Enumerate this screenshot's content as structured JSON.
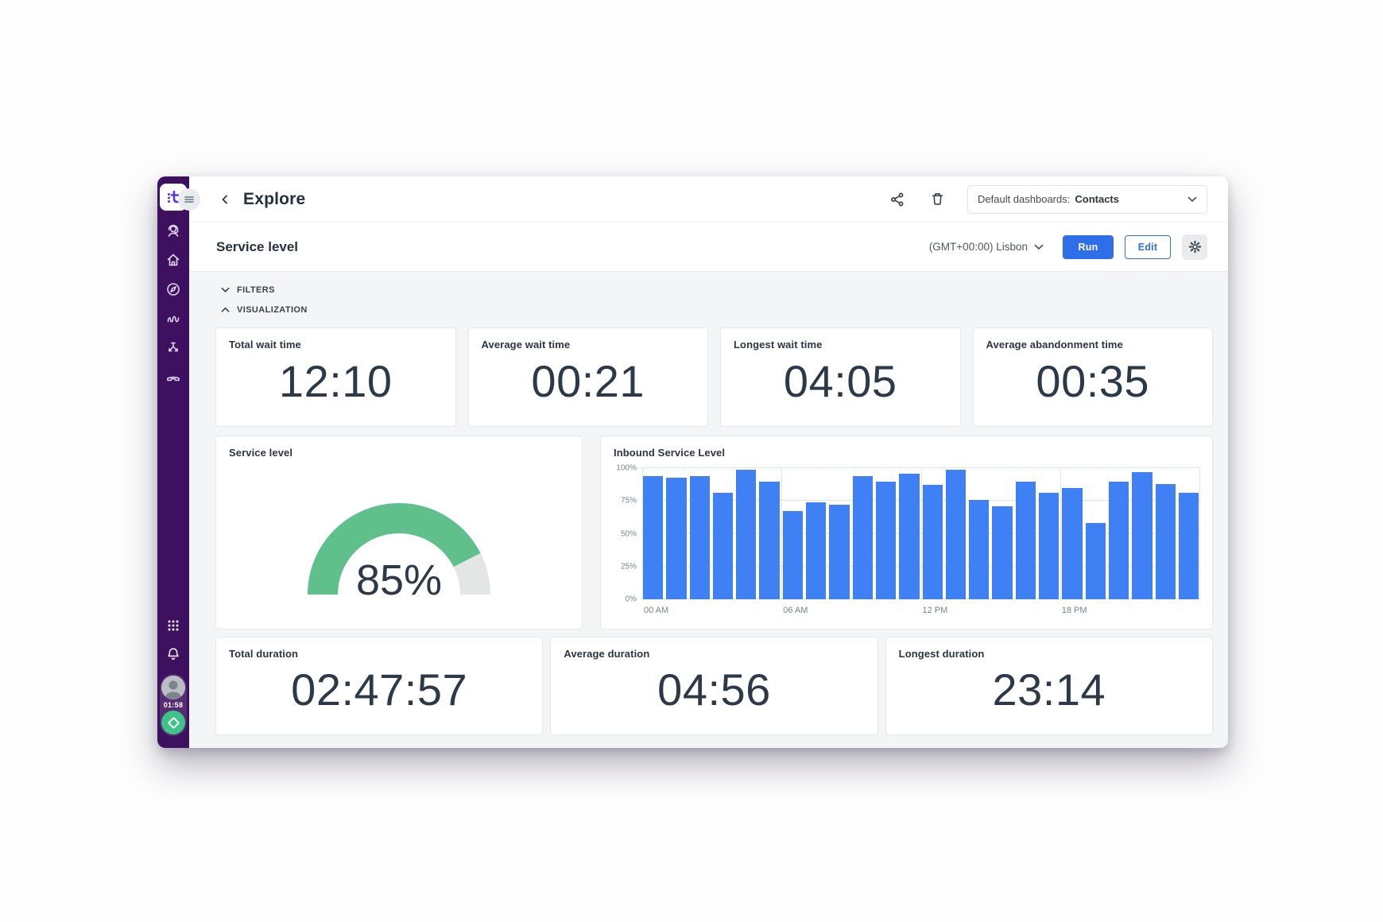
{
  "colors": {
    "sidebar": "#3d1160",
    "accent_blue": "#2e6fe9",
    "bar_blue": "#3f80f4",
    "gauge_green": "#5fc08c",
    "gauge_track": "#e4e6e6",
    "status_green": "#3fc389"
  },
  "sidebar": {
    "logo_text": "t",
    "nav_items": [
      {
        "icon": "agent-headset-icon"
      },
      {
        "icon": "home-icon"
      },
      {
        "icon": "compass-icon"
      },
      {
        "icon": "activity-wave-icon"
      },
      {
        "icon": "split-arrows-icon"
      },
      {
        "icon": "phone-handset-icon"
      }
    ],
    "bottom": {
      "apps_icon": "grid-apps-icon",
      "notifications_icon": "bell-icon",
      "timer": "01:58"
    }
  },
  "header": {
    "back": "‹",
    "title": "Explore",
    "dashboard_selector": {
      "label": "Default dashboards:",
      "value": "Contacts"
    }
  },
  "toolbar": {
    "title": "Service level",
    "timezone": "(GMT+00:00) Lisbon",
    "run_label": "Run",
    "edit_label": "Edit"
  },
  "sections": {
    "filters": "FILTERS",
    "visualization": "VISUALIZATION"
  },
  "metrics_top": [
    {
      "label": "Total wait time",
      "value": "12:10"
    },
    {
      "label": "Average wait time",
      "value": "00:21"
    },
    {
      "label": "Longest wait time",
      "value": "04:05"
    },
    {
      "label": "Average abandonment time",
      "value": "00:35"
    }
  ],
  "gauge": {
    "title": "Service level",
    "value_percent": 85,
    "display": "85%"
  },
  "chart_data": {
    "type": "bar",
    "title": "Inbound Service Level",
    "x": [
      0,
      1,
      2,
      3,
      4,
      5,
      6,
      7,
      8,
      9,
      10,
      11,
      12,
      13,
      14,
      15,
      16,
      17,
      18,
      19,
      20,
      21,
      22,
      23
    ],
    "values": [
      94,
      93,
      94,
      81,
      99,
      90,
      67,
      74,
      72,
      94,
      90,
      96,
      87,
      99,
      76,
      71,
      90,
      81,
      85,
      58,
      90,
      97,
      88,
      81
    ],
    "x_tick_labels": [
      "00 AM",
      "06 AM",
      "12 PM",
      "18 PM"
    ],
    "x_tick_positions": [
      0,
      6,
      12,
      18
    ],
    "x_count": 24,
    "y_ticks": [
      0,
      25,
      50,
      75,
      100
    ],
    "y_tick_labels": [
      "0%",
      "25%",
      "50%",
      "75%",
      "100%"
    ],
    "ylim": [
      0,
      100
    ],
    "grid": "dotted horizontal, solid vertical every 6h",
    "legend": "none"
  },
  "metrics_bottom": [
    {
      "label": "Total duration",
      "value": "02:47:57"
    },
    {
      "label": "Average duration",
      "value": "04:56"
    },
    {
      "label": "Longest duration",
      "value": "23:14"
    }
  ]
}
